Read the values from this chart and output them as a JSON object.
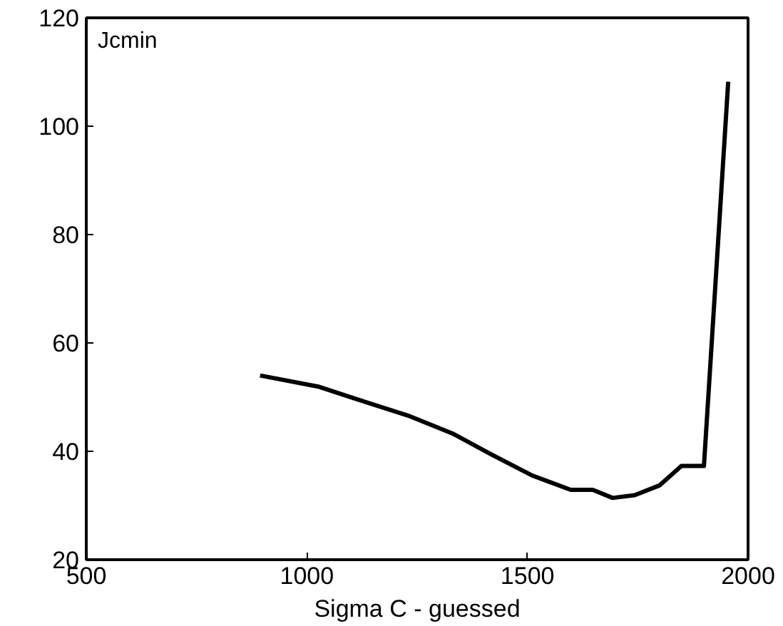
{
  "chart_data": {
    "type": "line",
    "xlabel": "Sigma C - guessed",
    "annotations": [
      "Jcmin"
    ],
    "x": [
      894,
      1028,
      1118,
      1229,
      1330,
      1419,
      1509,
      1598,
      1648,
      1693,
      1743,
      1799,
      1849,
      1900,
      1955
    ],
    "series": [
      {
        "color": "#000000",
        "values": [
          54.0,
          51.9,
          49.5,
          46.6,
          43.3,
          39.4,
          35.6,
          32.9,
          32.9,
          31.4,
          31.9,
          33.7,
          37.3,
          37.3,
          108.2
        ]
      }
    ],
    "xlim": [
      500,
      2000
    ],
    "ylim": [
      20,
      120
    ],
    "xticks": [
      500,
      1000,
      1500,
      2000
    ],
    "yticks": [
      20,
      40,
      60,
      80,
      100,
      120
    ],
    "grid": false,
    "marker": "none",
    "line_style": "solid"
  }
}
